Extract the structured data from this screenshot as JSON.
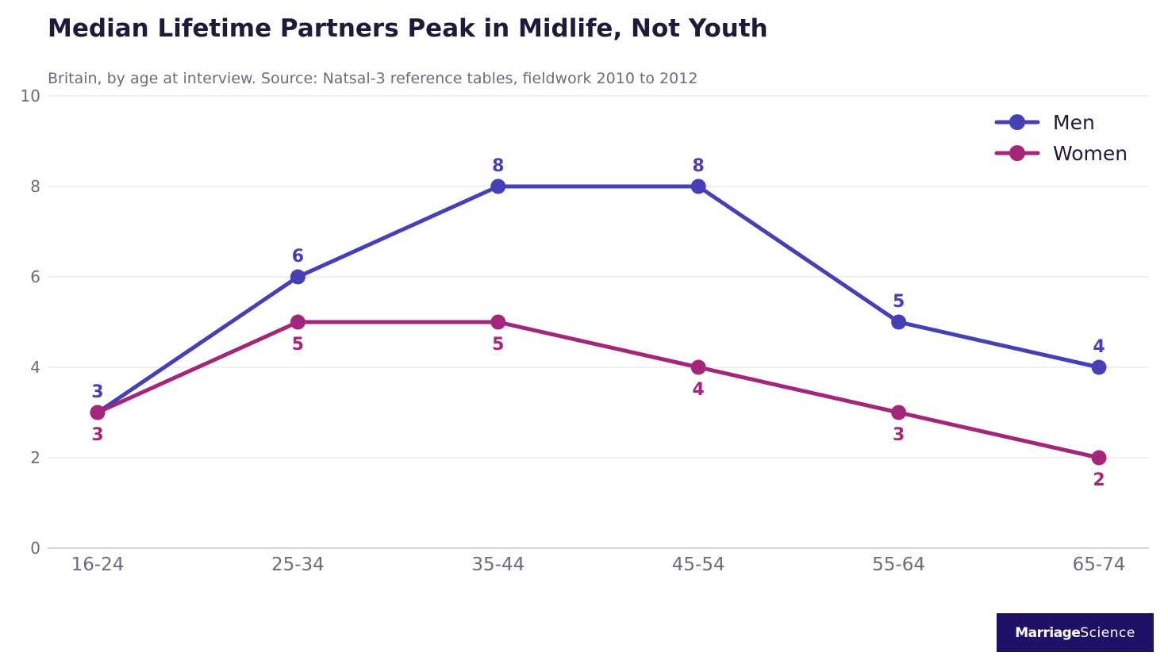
{
  "chart_data": {
    "type": "line",
    "title": "Median Lifetime Partners Peak in Midlife, Not Youth",
    "subtitle": "Britain, by age at interview. Source: Natsal-3 reference tables, fieldwork 2010 to 2012",
    "xlabel": "",
    "ylabel": "",
    "categories": [
      "16-24",
      "25-34",
      "35-44",
      "45-54",
      "55-64",
      "65-74"
    ],
    "ylim": [
      0,
      10
    ],
    "yticks": [
      "0",
      "2",
      "4",
      "6",
      "8",
      "10"
    ],
    "grid": true,
    "legend_position": "top-right",
    "series": [
      {
        "name": "Men",
        "values": [
          3,
          6,
          8,
          8,
          5,
          4
        ],
        "labels": [
          "3",
          "6",
          "8",
          "8",
          "5",
          "4"
        ],
        "color": "#4540b5",
        "label_side": "above"
      },
      {
        "name": "Women",
        "values": [
          3,
          5,
          5,
          4,
          3,
          2
        ],
        "labels": [
          "3",
          "5",
          "5",
          "4",
          "3",
          "2"
        ],
        "color": "#a4267a",
        "label_side": "below"
      }
    ]
  },
  "brand": {
    "bold": "Marriage",
    "light": "Science"
  }
}
